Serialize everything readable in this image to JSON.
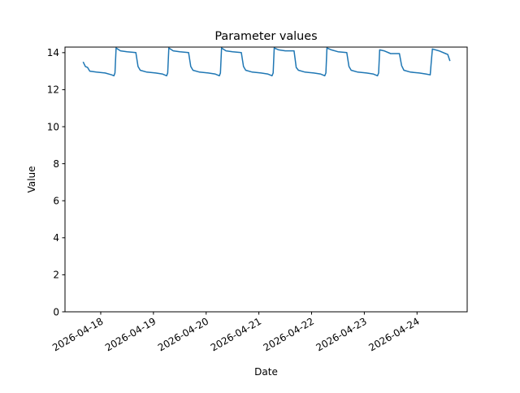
{
  "chart_data": {
    "type": "line",
    "title": "Parameter values",
    "xlabel": "Date",
    "ylabel": "Value",
    "xlim": [
      "2026-04-17 07:44",
      "2026-04-24 22:50"
    ],
    "ylim": [
      0,
      14.3
    ],
    "grid": false,
    "line_color": "#1f77b4",
    "xticks": [
      "2026-04-18",
      "2026-04-19",
      "2026-04-20",
      "2026-04-21",
      "2026-04-22",
      "2026-04-23",
      "2026-04-24"
    ],
    "yticks": [
      0,
      2,
      4,
      6,
      8,
      10,
      12,
      14
    ],
    "series": [
      {
        "x": [
          "2026-04-17 16:00",
          "2026-04-17 17:00",
          "2026-04-17 18:00",
          "2026-04-17 19:00",
          "2026-04-17 22:00",
          "2026-04-18 02:00",
          "2026-04-18 05:00",
          "2026-04-18 06:00",
          "2026-04-18 06:30",
          "2026-04-18 07:00",
          "2026-04-18 09:00",
          "2026-04-18 12:00",
          "2026-04-18 16:00",
          "2026-04-18 17:00",
          "2026-04-18 18:00",
          "2026-04-18 21:00",
          "2026-04-19 01:00",
          "2026-04-19 04:00",
          "2026-04-19 06:00",
          "2026-04-19 06:30",
          "2026-04-19 07:00",
          "2026-04-19 09:00",
          "2026-04-19 12:00",
          "2026-04-19 16:00",
          "2026-04-19 17:00",
          "2026-04-19 18:00",
          "2026-04-19 21:00",
          "2026-04-20 01:00",
          "2026-04-20 04:00",
          "2026-04-20 06:00",
          "2026-04-20 06:30",
          "2026-04-20 07:00",
          "2026-04-20 09:00",
          "2026-04-20 12:00",
          "2026-04-20 16:00",
          "2026-04-20 17:00",
          "2026-04-20 18:00",
          "2026-04-20 21:00",
          "2026-04-21 01:00",
          "2026-04-21 04:00",
          "2026-04-21 06:00",
          "2026-04-21 06:30",
          "2026-04-21 07:00",
          "2026-04-21 09:00",
          "2026-04-21 12:00",
          "2026-04-21 16:00",
          "2026-04-21 17:00",
          "2026-04-21 18:00",
          "2026-04-21 21:00",
          "2026-04-22 01:00",
          "2026-04-22 04:00",
          "2026-04-22 06:00",
          "2026-04-22 06:30",
          "2026-04-22 07:00",
          "2026-04-22 09:00",
          "2026-04-22 12:00",
          "2026-04-22 16:00",
          "2026-04-22 17:00",
          "2026-04-22 18:00",
          "2026-04-22 21:00",
          "2026-04-23 01:00",
          "2026-04-23 04:00",
          "2026-04-23 06:00",
          "2026-04-23 06:30",
          "2026-04-23 07:00",
          "2026-04-23 09:00",
          "2026-04-23 12:00",
          "2026-04-23 16:00",
          "2026-04-23 17:00",
          "2026-04-23 18:00",
          "2026-04-23 21:00",
          "2026-04-24 01:00",
          "2026-04-24 04:00",
          "2026-04-24 06:00",
          "2026-04-24 06:30",
          "2026-04-24 07:00",
          "2026-04-24 10:00",
          "2026-04-24 13:00",
          "2026-04-24 14:00",
          "2026-04-24 15:00"
        ],
        "y": [
          13.5,
          13.25,
          13.2,
          13.0,
          12.95,
          12.9,
          12.8,
          12.75,
          12.9,
          14.25,
          14.1,
          14.05,
          14.0,
          13.25,
          13.05,
          12.95,
          12.9,
          12.85,
          12.75,
          12.9,
          14.25,
          14.1,
          14.05,
          14.0,
          13.25,
          13.05,
          12.95,
          12.9,
          12.85,
          12.75,
          12.9,
          14.25,
          14.1,
          14.05,
          14.0,
          13.25,
          13.05,
          12.95,
          12.9,
          12.85,
          12.75,
          12.9,
          14.25,
          14.15,
          14.1,
          14.1,
          13.2,
          13.05,
          12.95,
          12.9,
          12.85,
          12.75,
          12.9,
          14.25,
          14.15,
          14.05,
          14.0,
          13.25,
          13.05,
          12.95,
          12.9,
          12.85,
          12.75,
          12.9,
          14.15,
          14.1,
          13.95,
          13.95,
          13.3,
          13.05,
          12.95,
          12.9,
          12.85,
          12.8,
          13.5,
          14.2,
          14.1,
          13.95,
          13.9,
          13.55
        ]
      }
    ]
  }
}
